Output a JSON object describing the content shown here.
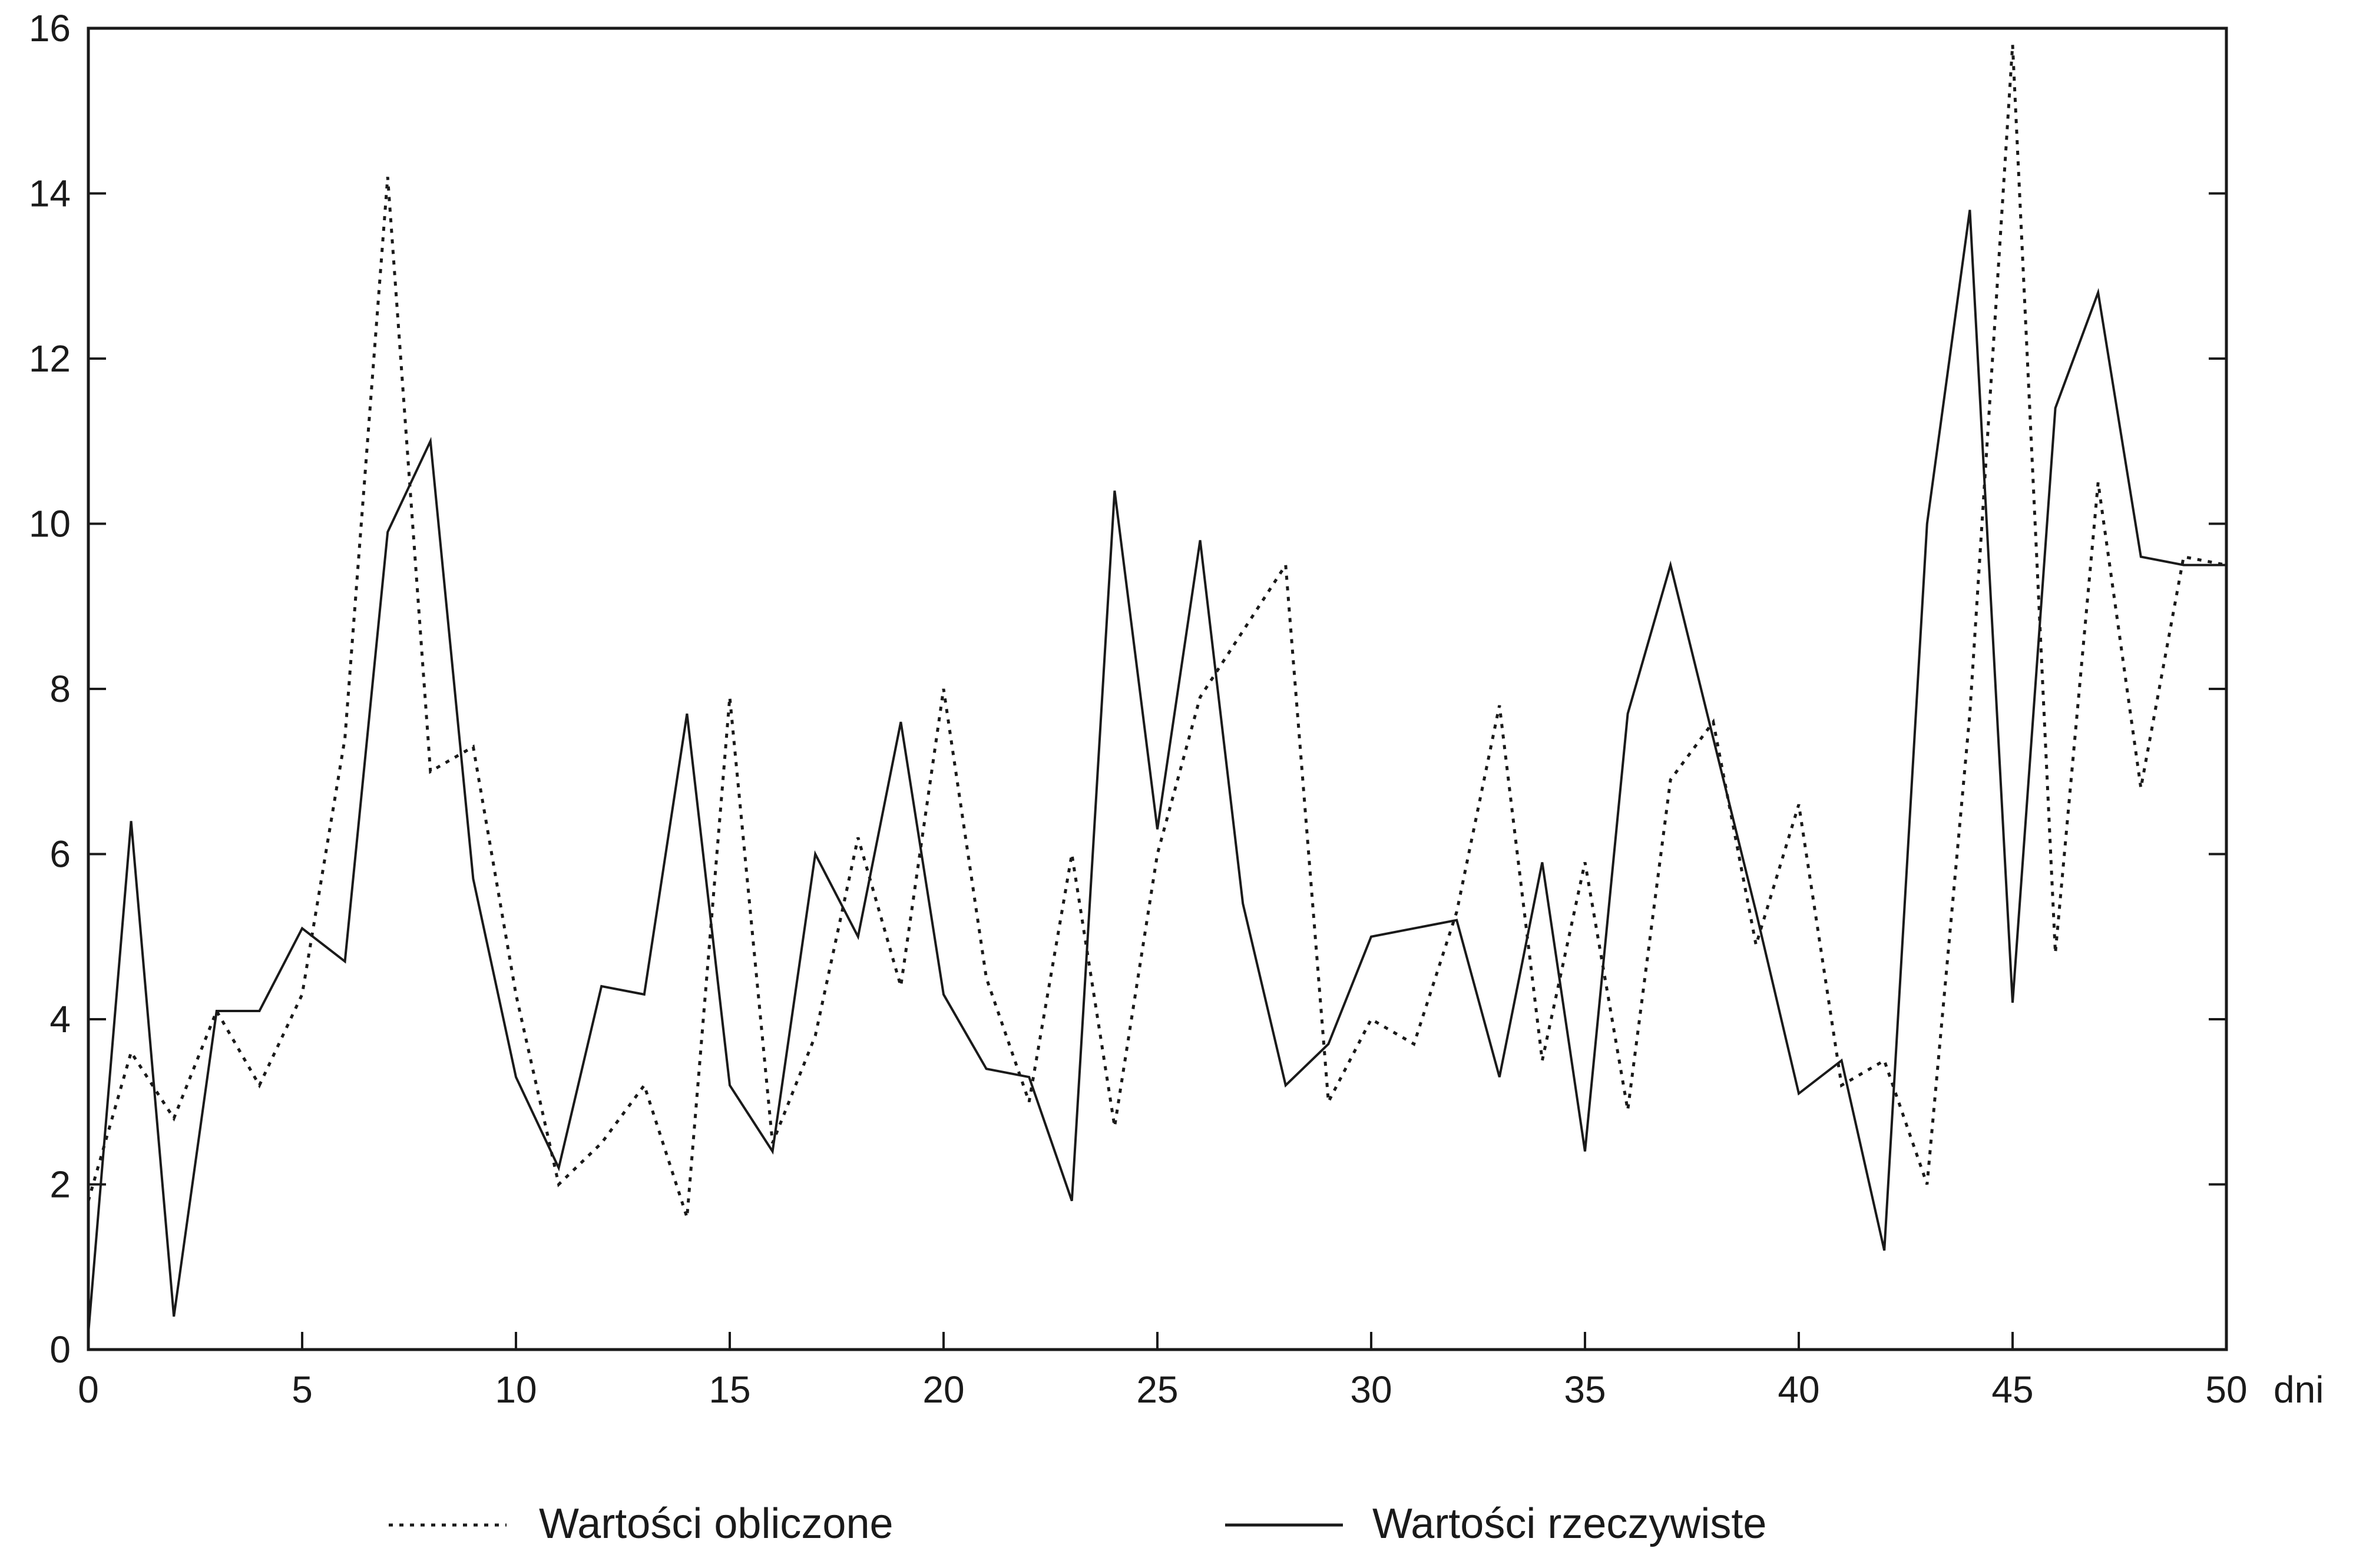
{
  "chart_data": {
    "type": "line",
    "x": [
      0,
      1,
      2,
      3,
      4,
      5,
      6,
      7,
      8,
      9,
      10,
      11,
      12,
      13,
      14,
      15,
      16,
      17,
      18,
      19,
      20,
      21,
      22,
      23,
      24,
      25,
      26,
      27,
      28,
      29,
      30,
      31,
      32,
      33,
      34,
      35,
      36,
      37,
      38,
      39,
      40,
      41,
      42,
      43,
      44,
      45,
      46,
      47,
      48,
      49,
      50
    ],
    "series": [
      {
        "name": "Wartości obliczone",
        "style": "dotted",
        "color": "#1a1a1a",
        "values": [
          1.8,
          3.6,
          2.8,
          4.1,
          3.2,
          4.3,
          7.4,
          14.2,
          7.0,
          7.3,
          4.3,
          2.0,
          2.5,
          3.2,
          1.6,
          7.9,
          2.5,
          3.8,
          6.2,
          4.4,
          8.0,
          4.5,
          3.0,
          6.0,
          2.7,
          6.0,
          7.9,
          8.7,
          9.5,
          3.0,
          4.0,
          3.7,
          5.3,
          7.8,
          3.5,
          5.9,
          2.9,
          6.9,
          7.6,
          4.9,
          6.6,
          3.2,
          3.5,
          2.0,
          7.7,
          15.8,
          4.8,
          10.5,
          6.8,
          9.6,
          9.5
        ]
      },
      {
        "name": "Wartości rzeczywiste",
        "style": "solid",
        "color": "#1a1a1a",
        "values": [
          0.2,
          6.4,
          0.4,
          4.1,
          4.1,
          5.1,
          4.7,
          9.9,
          11.0,
          5.7,
          3.3,
          2.2,
          4.4,
          4.3,
          7.7,
          3.2,
          2.4,
          6.0,
          5.0,
          7.6,
          4.3,
          3.4,
          3.3,
          1.8,
          10.4,
          6.3,
          9.8,
          5.4,
          3.2,
          3.7,
          5.0,
          5.1,
          5.2,
          3.3,
          5.9,
          2.4,
          7.7,
          9.5,
          7.4,
          5.3,
          3.1,
          3.5,
          1.2,
          10.0,
          13.8,
          4.2,
          11.4,
          12.8,
          9.6,
          9.5,
          9.5
        ]
      }
    ],
    "xlim": [
      0,
      50
    ],
    "ylim": [
      0,
      16
    ],
    "xticks": [
      "0",
      "5",
      "10",
      "15",
      "20",
      "25",
      "30",
      "35",
      "40",
      "45",
      "50"
    ],
    "yticks": [
      "0",
      "2",
      "4",
      "6",
      "8",
      "10",
      "12",
      "14",
      "16"
    ],
    "xlabel": "dni",
    "ylabel": "",
    "title": "",
    "grid": false,
    "legend_position": "bottom"
  }
}
